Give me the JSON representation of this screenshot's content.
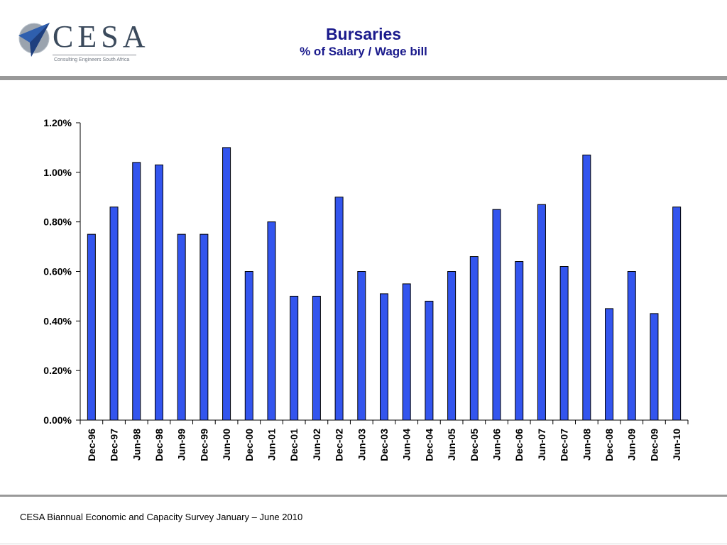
{
  "header": {
    "logo": {
      "wordmark": "CESA",
      "tagline": "Consulting Engineers South Africa",
      "icon": "paper-plane-globe-icon"
    },
    "title": "Bursaries",
    "subtitle": "% of Salary / Wage bill"
  },
  "footer": {
    "text": "CESA Biannual Economic and Capacity Survey January – June 2010"
  },
  "colors": {
    "bar_fill": "#3355ee",
    "bar_stroke": "#000000",
    "title": "#1a1a8c",
    "rule": "#999999"
  },
  "chart_data": {
    "type": "bar",
    "title": "Bursaries",
    "subtitle": "% of Salary / Wage bill",
    "xlabel": "",
    "ylabel": "",
    "ylim": [
      0,
      1.2
    ],
    "yticks": [
      "0.00%",
      "0.20%",
      "0.40%",
      "0.60%",
      "0.80%",
      "1.00%",
      "1.20%"
    ],
    "grid": false,
    "legend": "none",
    "categories": [
      "Dec-96",
      "Dec-97",
      "Jun-98",
      "Dec-98",
      "Jun-99",
      "Dec-99",
      "Jun-00",
      "Dec-00",
      "Jun-01",
      "Dec-01",
      "Jun-02",
      "Dec-02",
      "Jun-03",
      "Dec-03",
      "Jun-04",
      "Dec-04",
      "Jun-05",
      "Dec-05",
      "Jun-06",
      "Dec-06",
      "Jun-07",
      "Dec-07",
      "Jun-08",
      "Dec-08",
      "Jun-09",
      "Dec-09",
      "Jun-10"
    ],
    "values": [
      0.75,
      0.86,
      1.04,
      1.03,
      0.75,
      0.75,
      1.1,
      0.6,
      0.8,
      0.5,
      0.5,
      0.9,
      0.6,
      0.51,
      0.55,
      0.48,
      0.6,
      0.66,
      0.85,
      0.64,
      0.87,
      0.62,
      1.07,
      0.45,
      0.6,
      0.43,
      0.86
    ]
  }
}
